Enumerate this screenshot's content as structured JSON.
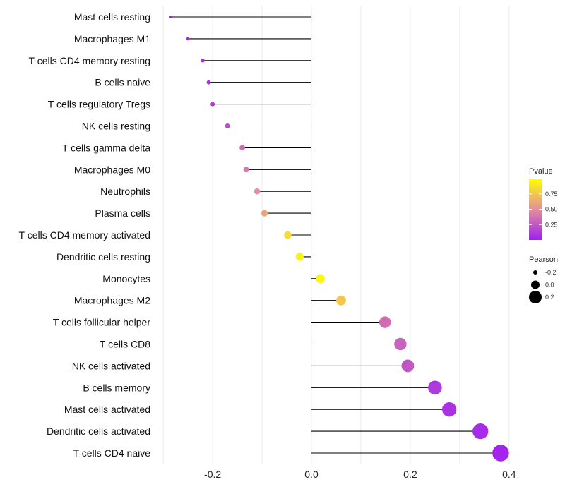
{
  "chart_data": {
    "type": "lollipop",
    "categories": [
      "Mast cells resting",
      "Macrophages M1",
      "T cells CD4 memory resting",
      "B cells naive",
      "T cells regulatory  Tregs ",
      "NK cells resting",
      "T cells gamma delta",
      "Macrophages M0",
      "Neutrophils",
      "Plasma cells",
      "T cells CD4 memory activated",
      "Dendritic cells resting",
      "Monocytes",
      "Macrophages M2",
      "T cells follicular helper",
      "T cells CD8",
      "NK cells activated",
      "B cells memory",
      "Mast cells activated",
      "Dendritic cells activated",
      "T cells CD4 naive"
    ],
    "values": [
      -0.285,
      -0.25,
      -0.22,
      -0.208,
      -0.2,
      -0.17,
      -0.14,
      -0.132,
      -0.11,
      -0.095,
      -0.048,
      -0.024,
      0.018,
      0.06,
      0.149,
      0.18,
      0.195,
      0.25,
      0.279,
      0.342,
      0.383
    ],
    "pvalues": [
      0.01,
      0.03,
      0.06,
      0.08,
      0.1,
      0.2,
      0.35,
      0.4,
      0.5,
      0.6,
      0.85,
      0.95,
      0.97,
      0.75,
      0.35,
      0.3,
      0.25,
      0.12,
      0.08,
      0.05,
      0.02
    ],
    "x_ticks": [
      -0.2,
      0.0,
      0.2,
      0.4
    ],
    "x_tick_labels": [
      "-0.2",
      "0.0",
      "0.2",
      "0.4"
    ],
    "xlim": [
      -0.3,
      0.4
    ],
    "baseline": 0.0,
    "title": "",
    "xlabel": "",
    "ylabel": "",
    "grid": true,
    "legend_color": {
      "title": "Pvalue",
      "ticks": [
        0.75,
        0.5,
        0.25
      ],
      "tick_labels": [
        "0.75",
        "0.50",
        "0.25"
      ],
      "range": [
        0.0,
        1.0
      ],
      "colors": [
        "#a020f0",
        "#ffff00"
      ]
    },
    "legend_size": {
      "title": "Pearson",
      "values": [
        -0.2,
        0.0,
        0.2
      ],
      "labels": [
        "-0.2",
        "0.0",
        "0.2"
      ]
    },
    "legend_position": "right",
    "segment_color": "#000000",
    "grid_color": "#ebebeb"
  }
}
